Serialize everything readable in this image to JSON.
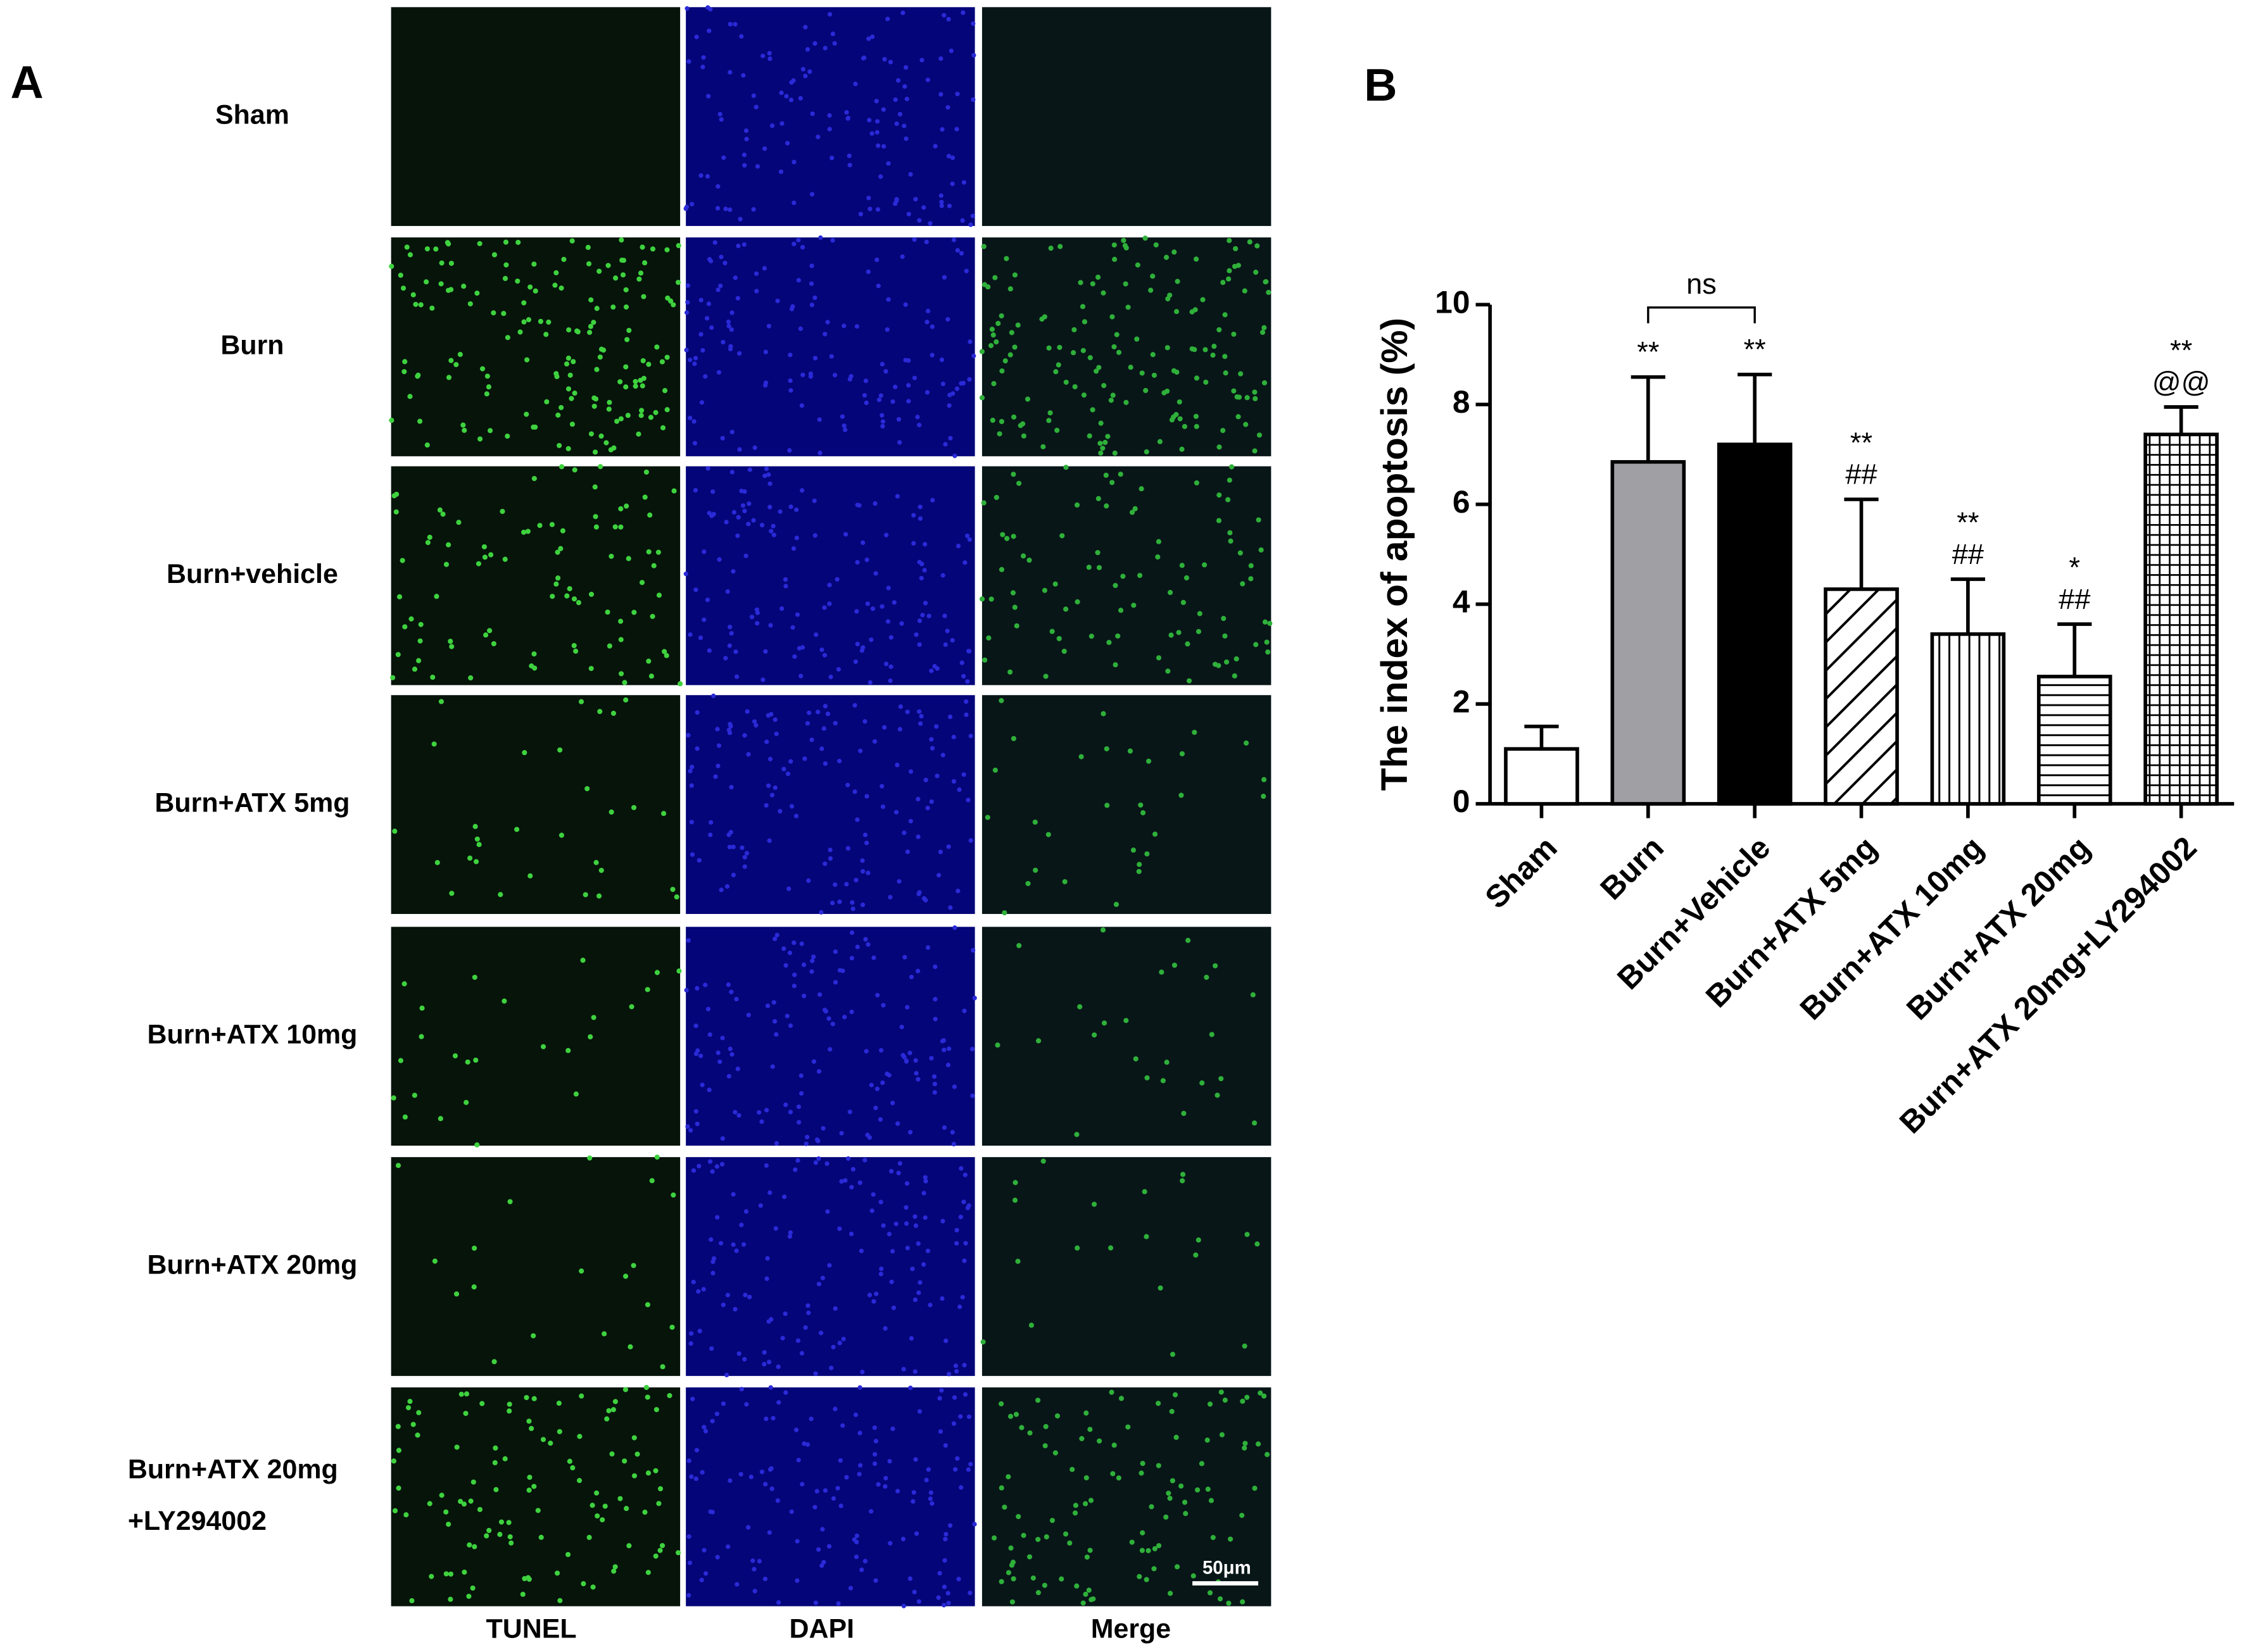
{
  "panel_a": {
    "label": "A",
    "rows": [
      [
        "Sham"
      ],
      [
        "Burn"
      ],
      [
        "Burn+vehicle"
      ],
      [
        "Burn+ATX 5mg"
      ],
      [
        "Burn+ATX 10mg"
      ],
      [
        "Burn+ATX 20mg"
      ],
      [
        "Burn+ATX 20mg",
        "+LY294002"
      ]
    ],
    "columns": [
      "TUNEL",
      "DAPI",
      "Merge"
    ],
    "scale_bar": "50μm"
  },
  "chart_data": {
    "type": "bar",
    "panel_label": "B",
    "y_label": "The index of apoptosis (%)",
    "categories": [
      "Sham",
      "Burn",
      "Burn+Vehicle",
      "Burn+ATX 5mg",
      "Burn+ATX 10mg",
      "Burn+ATX 20mg",
      "Burn+ATX 20mg+LY294002"
    ],
    "values": [
      1.1,
      6.85,
      7.2,
      4.3,
      3.4,
      2.55,
      7.4
    ],
    "errors": [
      0.45,
      1.7,
      1.4,
      1.8,
      1.1,
      1.05,
      0.55
    ],
    "colors": [
      "#ffffff",
      "#a0a0a4",
      "#000000",
      "#ffffff",
      "#ffffff",
      "#ffffff",
      "#ffffff"
    ],
    "hatches": [
      "none",
      "none",
      "none",
      "diagonal",
      "vertical",
      "horizontal",
      "grid"
    ],
    "annotations": [
      [],
      [
        "**"
      ],
      [
        "**"
      ],
      [
        "**",
        "##"
      ],
      [
        "**",
        "##"
      ],
      [
        "*",
        "##"
      ],
      [
        "**",
        "@@"
      ]
    ],
    "comparison": {
      "label": "ns",
      "between": [
        "Burn",
        "Burn+Vehicle"
      ]
    },
    "ylim": [
      0,
      10
    ],
    "yticks": [
      0,
      2,
      4,
      6,
      8,
      10
    ]
  }
}
